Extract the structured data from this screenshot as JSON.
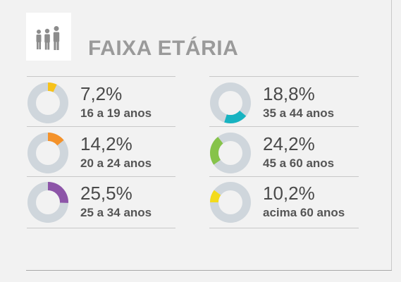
{
  "title": "FAIXA ETÁRIA",
  "icon": "people-icon",
  "colors": {
    "track": "#cfd6dc",
    "hole": "#f2f2f2",
    "icon": "#8c8c8c"
  },
  "chart_data": {
    "type": "pie",
    "title": "FAIXA ETÁRIA",
    "items": [
      {
        "value": 7.2,
        "value_label": "7,2%",
        "label": "16 a 19 anos",
        "color": "#f7c21a"
      },
      {
        "value": 14.2,
        "value_label": "14,2%",
        "label": "20 a 24 anos",
        "color": "#f4922a"
      },
      {
        "value": 25.5,
        "value_label": "25,5%",
        "label": "25 a 34 anos",
        "color": "#8d55a8"
      },
      {
        "value": 18.8,
        "value_label": "18,8%",
        "label": "35 a 44 anos",
        "color": "#17b3c1"
      },
      {
        "value": 24.2,
        "value_label": "24,2%",
        "label": "45 a 60 anos",
        "color": "#86c34a"
      },
      {
        "value": 10.2,
        "value_label": "10,2%",
        "label": "acima 60 anos",
        "color": "#f3db1c"
      }
    ]
  }
}
